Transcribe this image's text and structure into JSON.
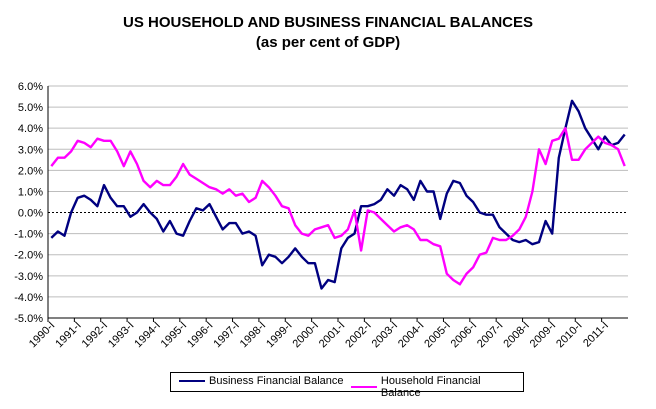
{
  "chart_data": {
    "type": "line",
    "title": "US HOUSEHOLD AND BUSINESS FINANCIAL BALANCES",
    "subtitle": "(as per cent of GDP)",
    "ylim": [
      -5.0,
      6.0
    ],
    "yticks": [
      "-5.0%",
      "-4.0%",
      "-3.0%",
      "-2.0%",
      "-1.0%",
      "0.0%",
      "1.0%",
      "2.0%",
      "3.0%",
      "4.0%",
      "5.0%",
      "6.0%"
    ],
    "ytick_values": [
      -5,
      -4,
      -3,
      -2,
      -1,
      0,
      1,
      2,
      3,
      4,
      5,
      6
    ],
    "xticks": [
      "1990-I",
      "1991-I",
      "1992-I",
      "1993-I",
      "1994-I",
      "1995-I",
      "1996-I",
      "1997-I",
      "1998-I",
      "1999-I",
      "2000-I",
      "2001-I",
      "2002-I",
      "2003-I",
      "2004-I",
      "2005-I",
      "2006-I",
      "2007-I",
      "2008-I",
      "2009-I",
      "2010-I",
      "2011-I"
    ],
    "x_start": "1990-I",
    "x_frequency": "quarterly",
    "grid": "horizontal",
    "zero_line": "dotted",
    "legend_position": "bottom",
    "series": [
      {
        "name": "Business Financial Balance",
        "color": "#000080",
        "values": [
          -1.2,
          -0.9,
          -1.1,
          0.0,
          0.7,
          0.8,
          0.6,
          0.3,
          1.3,
          0.7,
          0.3,
          0.3,
          -0.2,
          0.0,
          0.4,
          0.0,
          -0.3,
          -0.9,
          -0.4,
          -1.0,
          -1.1,
          -0.4,
          0.2,
          0.1,
          0.4,
          -0.2,
          -0.8,
          -0.5,
          -0.5,
          -1.0,
          -0.9,
          -1.1,
          -2.5,
          -2.0,
          -2.1,
          -2.4,
          -2.1,
          -1.7,
          -2.1,
          -2.4,
          -2.4,
          -3.6,
          -3.2,
          -3.3,
          -1.7,
          -1.2,
          -1.0,
          0.3,
          0.3,
          0.4,
          0.6,
          1.1,
          0.8,
          1.3,
          1.1,
          0.6,
          1.5,
          1.0,
          1.0,
          -0.3,
          0.9,
          1.5,
          1.4,
          0.8,
          0.5,
          0.0,
          -0.1,
          -0.1,
          -0.7,
          -1.0,
          -1.3,
          -1.4,
          -1.3,
          -1.5,
          -1.4,
          -0.4,
          -1.0,
          2.6,
          4.0,
          5.3,
          4.8,
          4.0,
          3.5,
          3.0,
          3.6,
          3.2,
          3.3,
          3.7
        ]
      },
      {
        "name": "Household Financial Balance",
        "color": "#ff00ff",
        "values": [
          2.2,
          2.6,
          2.6,
          2.9,
          3.4,
          3.3,
          3.1,
          3.5,
          3.4,
          3.4,
          2.9,
          2.2,
          2.9,
          2.3,
          1.5,
          1.2,
          1.5,
          1.3,
          1.3,
          1.7,
          2.3,
          1.8,
          1.6,
          1.4,
          1.2,
          1.1,
          0.9,
          1.1,
          0.8,
          0.9,
          0.5,
          0.7,
          1.5,
          1.2,
          0.8,
          0.3,
          0.2,
          -0.6,
          -1.0,
          -1.1,
          -0.8,
          -0.7,
          -0.6,
          -1.2,
          -1.1,
          -0.8,
          0.1,
          -1.8,
          0.1,
          0.0,
          -0.3,
          -0.6,
          -0.9,
          -0.7,
          -0.6,
          -0.8,
          -1.3,
          -1.3,
          -1.5,
          -1.6,
          -2.9,
          -3.2,
          -3.4,
          -2.9,
          -2.6,
          -2.0,
          -1.9,
          -1.2,
          -1.3,
          -1.3,
          -1.1,
          -0.8,
          -0.2,
          1.0,
          3.0,
          2.3,
          3.4,
          3.5,
          4.0,
          2.5,
          2.5,
          3.0,
          3.3,
          3.6,
          3.3,
          3.2,
          3.0,
          2.2
        ]
      }
    ]
  }
}
